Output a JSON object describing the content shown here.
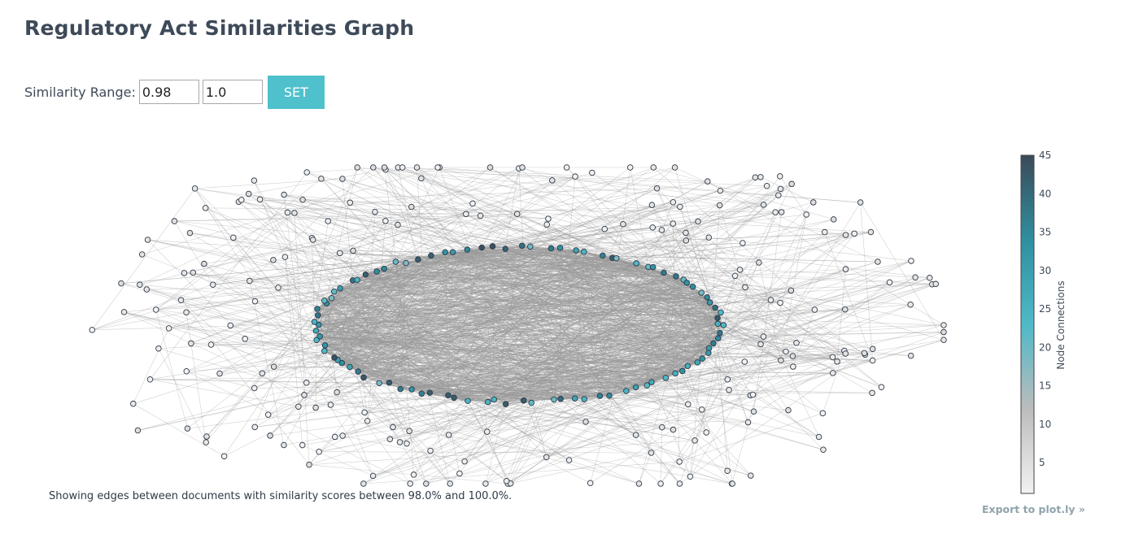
{
  "page": {
    "title": "Regulatory Act Similarities Graph",
    "range_label": "Similarity Range:",
    "range_min": "0.98",
    "range_max": "1.0",
    "set_label": "SET",
    "caption": "Showing edges between documents with similarity scores between 98.0% and 100.0%.",
    "export_label": "Export to plot.ly »"
  },
  "chart_data": {
    "type": "network",
    "node_count": 330,
    "edge_color": "#999999",
    "node_color_metric": "Node Connections",
    "colorscale": [
      "#f2f2f2",
      "#bcbcbc",
      "#4fb9c8",
      "#2f8fa0",
      "#3b4a5a"
    ],
    "colorbar": {
      "title": "Node Connections",
      "range": [
        1,
        45
      ],
      "ticks": [
        5,
        10,
        15,
        20,
        25,
        30,
        35,
        40,
        45
      ]
    }
  }
}
